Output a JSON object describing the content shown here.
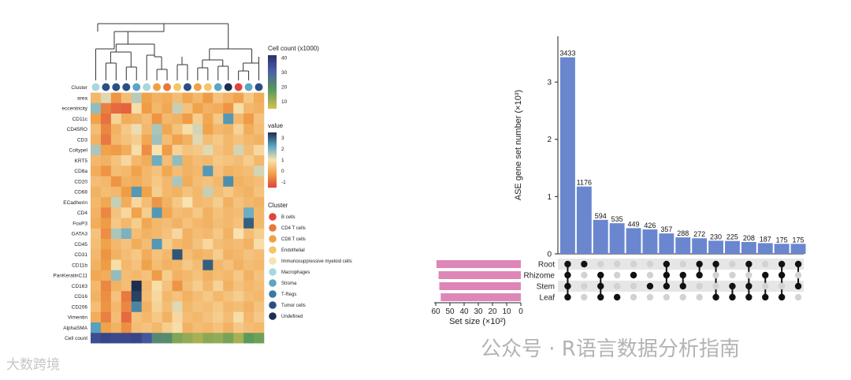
{
  "watermarks": {
    "right": "公众号 · R语言数据分析指南",
    "left": "大数跨境"
  },
  "chart_data": [
    {
      "type": "heatmap",
      "row_labels": [
        "area",
        "eccentricity",
        "CD11c",
        "CD45RO",
        "CD3",
        "Coltypel",
        "KRT5",
        "CD8a",
        "CD20",
        "CD68",
        "ECadherin",
        "CD4",
        "FoxP3",
        "GATA3",
        "CD45",
        "CD31",
        "CD11b",
        "PanKeratinC11",
        "CD163",
        "CD16",
        "CD206",
        "Vimentin",
        "AlphaSMA"
      ],
      "cluster_row_label": "Cluster",
      "cellcount_row_label": "Cell count",
      "column_clusters": [
        "Macrophages",
        "Tumor cells",
        "Tumor cells",
        "Tumor cells",
        "Stroma",
        "Macrophages",
        "CD8 T cells",
        "CD4 T cells",
        "Endothelial",
        "Tumor cells",
        "CD8 T cells",
        "Endothelial",
        "Stroma",
        "Undefined",
        "B cells",
        "Stroma",
        "Tumor cells"
      ],
      "cell_count_thousands": [
        35,
        37,
        36,
        36,
        37,
        33,
        22,
        21,
        14,
        12,
        10,
        13,
        12,
        15,
        10,
        18,
        16
      ],
      "values": [
        [
          0.2,
          1.2,
          -0.4,
          0.3,
          1.5,
          -0.2,
          0.1,
          0.0,
          0.3,
          -0.1,
          0.2,
          -0.3,
          0.4,
          0.1,
          -0.2,
          0.5,
          0.0
        ],
        [
          1.8,
          -0.7,
          -1.0,
          -1.1,
          0.9,
          -0.3,
          0.2,
          -0.1,
          1.4,
          0.4,
          -0.2,
          0.1,
          0.0,
          -0.4,
          0.9,
          0.2,
          0.1
        ],
        [
          -0.2,
          -0.9,
          0.7,
          0.0,
          0.1,
          0.3,
          -0.4,
          0.2,
          0.1,
          -0.3,
          0.6,
          -0.1,
          0.5,
          2.4,
          0.2,
          -0.3,
          0.4
        ],
        [
          0.3,
          -0.6,
          0.1,
          0.5,
          1.1,
          0.2,
          1.6,
          -0.1,
          0.4,
          0.9,
          1.3,
          -0.2,
          0.2,
          0.1,
          0.7,
          0.0,
          0.3
        ],
        [
          0.1,
          -0.8,
          0.2,
          0.4,
          0.6,
          -0.1,
          1.7,
          0.3,
          -0.2,
          0.1,
          1.2,
          0.3,
          0.5,
          0.2,
          0.4,
          0.2,
          0.1
        ],
        [
          1.6,
          -0.2,
          -0.3,
          0.0,
          0.9,
          -0.5,
          1.0,
          -0.3,
          0.7,
          0.4,
          0.5,
          1.2,
          0.4,
          0.2,
          1.3,
          0.3,
          0.8
        ],
        [
          0.2,
          0.1,
          0.4,
          0.8,
          0.2,
          0.0,
          2.1,
          0.3,
          1.8,
          0.1,
          0.3,
          0.2,
          0.5,
          0.4,
          0.3,
          0.6,
          0.2
        ],
        [
          0.0,
          -0.4,
          0.3,
          0.2,
          -0.2,
          0.2,
          0.4,
          -0.1,
          0.3,
          0.1,
          0.2,
          2.4,
          0.4,
          0.1,
          0.2,
          0.3,
          1.3
        ],
        [
          0.3,
          0.2,
          -0.4,
          0.1,
          0.0,
          0.2,
          0.5,
          0.2,
          1.6,
          0.0,
          0.3,
          0.4,
          0.2,
          2.5,
          0.1,
          0.2,
          0.3
        ],
        [
          0.1,
          0.3,
          0.2,
          -0.3,
          2.4,
          -0.2,
          0.6,
          0.2,
          0.1,
          0.4,
          0.2,
          1.4,
          0.3,
          0.5,
          0.2,
          0.1,
          0.4
        ],
        [
          0.2,
          -0.1,
          1.4,
          0.0,
          0.8,
          0.3,
          -0.4,
          0.1,
          0.5,
          1.0,
          0.2,
          0.3,
          0.6,
          0.1,
          0.4,
          0.2,
          0.1
        ],
        [
          0.1,
          -0.6,
          0.4,
          0.8,
          -0.2,
          0.6,
          2.4,
          -0.1,
          0.3,
          0.2,
          0.5,
          0.1,
          0.4,
          0.2,
          0.3,
          2.1,
          0.2
        ],
        [
          0.0,
          -0.3,
          0.5,
          0.2,
          0.6,
          -0.1,
          0.2,
          0.3,
          0.1,
          0.4,
          0.2,
          0.1,
          0.3,
          0.2,
          0.4,
          3.0,
          0.2
        ],
        [
          0.4,
          -0.5,
          1.6,
          2.0,
          0.3,
          0.1,
          0.2,
          0.4,
          0.8,
          0.1,
          0.3,
          0.2,
          0.5,
          0.1,
          1.0,
          0.3,
          0.6
        ],
        [
          0.3,
          -0.2,
          0.2,
          0.4,
          0.0,
          0.3,
          2.4,
          0.6,
          0.2,
          0.1,
          0.4,
          0.8,
          0.3,
          0.2,
          0.3,
          0.1,
          0.9
        ],
        [
          0.2,
          -0.4,
          0.1,
          0.3,
          0.5,
          0.0,
          0.4,
          0.2,
          3.1,
          0.3,
          0.1,
          0.2,
          0.6,
          0.1,
          0.2,
          0.4,
          0.3
        ],
        [
          0.1,
          -0.3,
          0.9,
          0.2,
          0.4,
          -0.2,
          0.3,
          0.1,
          0.2,
          0.5,
          0.3,
          3.0,
          0.2,
          0.4,
          0.1,
          0.3,
          0.2
        ],
        [
          -0.1,
          0.0,
          1.8,
          0.3,
          0.2,
          0.4,
          -0.3,
          0.6,
          0.1,
          0.2,
          0.4,
          0.1,
          0.3,
          0.2,
          0.5,
          0.1,
          0.4
        ],
        [
          0.2,
          -0.6,
          0.1,
          0.3,
          3.5,
          0.2,
          0.9,
          0.4,
          -0.4,
          0.3,
          0.6,
          0.2,
          0.7,
          0.1,
          0.4,
          0.2,
          0.3
        ],
        [
          0.1,
          -0.5,
          0.4,
          -0.8,
          3.3,
          0.3,
          0.8,
          0.2,
          0.4,
          0.1,
          0.3,
          0.5,
          0.2,
          0.4,
          0.6,
          0.3,
          0.2
        ],
        [
          0.3,
          -0.4,
          0.2,
          -0.6,
          2.6,
          0.1,
          0.7,
          0.3,
          1.2,
          0.2,
          0.4,
          0.3,
          0.5,
          0.2,
          0.3,
          0.1,
          0.4
        ],
        [
          0.0,
          -0.7,
          0.3,
          -1.0,
          0.4,
          0.2,
          0.5,
          0.1,
          0.8,
          0.3,
          0.2,
          0.4,
          0.6,
          0.3,
          0.9,
          0.2,
          0.5
        ],
        [
          2.3,
          -0.2,
          0.1,
          -0.5,
          0.3,
          0.4,
          0.2,
          0.6,
          0.9,
          0.1,
          0.3,
          0.2,
          0.4,
          0.1,
          0.5,
          0.3,
          0.2
        ]
      ],
      "cellcount_legend": {
        "title": "Cell count (x1000)",
        "ticks": [
          40,
          30,
          20,
          10
        ]
      },
      "value_legend": {
        "title": "value",
        "ticks": [
          3,
          2,
          1,
          0,
          -1
        ]
      },
      "cluster_legend": {
        "title": "Cluster",
        "items": [
          {
            "name": "B cells",
            "color": "#e0453b"
          },
          {
            "name": "CD4 T cells",
            "color": "#e8773a"
          },
          {
            "name": "CD8 T cells",
            "color": "#f0a046"
          },
          {
            "name": "Endothelial",
            "color": "#f5c566"
          },
          {
            "name": "Immunosuppressive myeloid cells",
            "color": "#f8e2b0"
          },
          {
            "name": "Macrophages",
            "color": "#a6d8dc"
          },
          {
            "name": "Stroma",
            "color": "#5aa6c4"
          },
          {
            "name": "T-Regs",
            "color": "#357ba6"
          },
          {
            "name": "Tumor cells",
            "color": "#2a4f86"
          },
          {
            "name": "Undefined",
            "color": "#1c2f52"
          }
        ]
      }
    },
    {
      "type": "bar",
      "subtype": "upset",
      "ylabel": "ASE gene set number (×10³)",
      "ylim": [
        0,
        3.8
      ],
      "yticks": [
        0,
        1,
        2,
        3
      ],
      "values": [
        3433,
        1176,
        594,
        535,
        449,
        426,
        357,
        288,
        272,
        230,
        225,
        208,
        187,
        175,
        175
      ],
      "value_labels": [
        "3433",
        "1176",
        "594",
        "535",
        "449",
        "426",
        "357",
        "288",
        "272",
        "230",
        "225",
        "208",
        "187",
        "175",
        "175"
      ],
      "bar_color": "#6a86cf",
      "sets": [
        "Root",
        "Rhizome",
        "Stem",
        "Leaf"
      ],
      "set_sizes_hundreds": [
        59.5,
        58,
        57.5,
        56.5
      ],
      "set_size_label": "Set size (×10²)",
      "set_size_ticks": [
        60,
        50,
        40,
        30,
        20,
        10,
        0
      ],
      "set_bar_color": "#de86b8",
      "intersections": [
        [
          "Root",
          "Rhizome",
          "Stem",
          "Leaf"
        ],
        [
          "Root"
        ],
        [
          "Rhizome",
          "Stem",
          "Leaf"
        ],
        [
          "Leaf"
        ],
        [
          "Rhizome"
        ],
        [
          "Stem"
        ],
        [
          "Root",
          "Rhizome",
          "Stem"
        ],
        [
          "Rhizome",
          "Stem"
        ],
        [
          "Root",
          "Rhizome"
        ],
        [
          "Root",
          "Leaf"
        ],
        [
          "Stem",
          "Leaf"
        ],
        [
          "Root",
          "Stem",
          "Leaf"
        ],
        [
          "Rhizome",
          "Leaf"
        ],
        [
          "Root",
          "Rhizome",
          "Leaf"
        ],
        [
          "Root",
          "Stem"
        ]
      ]
    }
  ]
}
